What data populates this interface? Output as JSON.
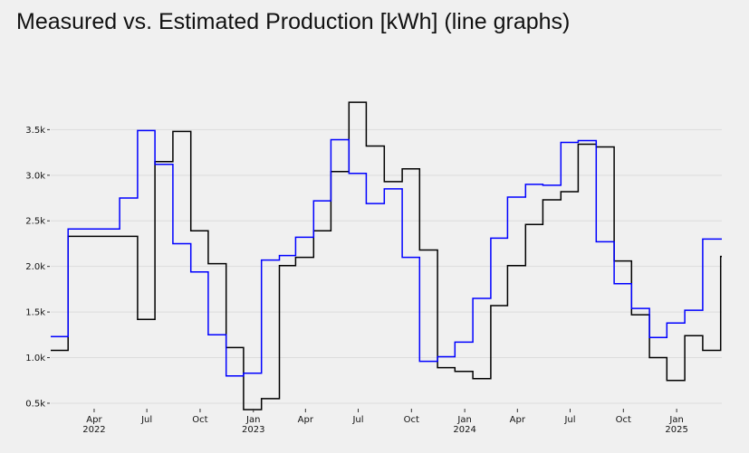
{
  "chart_data": {
    "type": "line",
    "title": "Measured vs. Estimated Production [kWh] (line graphs)",
    "xlabel": "",
    "ylabel": "",
    "step": true,
    "grid": true,
    "x_range": [
      "2022-01-16",
      "2025-03-20"
    ],
    "ylim": [
      450,
      3950
    ],
    "y_ticks": [
      500,
      1000,
      1500,
      2000,
      2500,
      3000,
      3500
    ],
    "y_tick_labels": [
      "0.5k",
      "1.0k",
      "1.5k",
      "2.0k",
      "2.5k",
      "3.0k",
      "3.5k"
    ],
    "x_ticks": [
      {
        "date": "2022-04-01",
        "label": "Apr",
        "sublabel": "2022"
      },
      {
        "date": "2022-07-01",
        "label": "Jul",
        "sublabel": ""
      },
      {
        "date": "2022-10-01",
        "label": "Oct",
        "sublabel": ""
      },
      {
        "date": "2023-01-01",
        "label": "Jan",
        "sublabel": "2023"
      },
      {
        "date": "2023-04-01",
        "label": "Apr",
        "sublabel": ""
      },
      {
        "date": "2023-07-01",
        "label": "Jul",
        "sublabel": ""
      },
      {
        "date": "2023-10-01",
        "label": "Oct",
        "sublabel": ""
      },
      {
        "date": "2024-01-01",
        "label": "Jan",
        "sublabel": "2024"
      },
      {
        "date": "2024-04-01",
        "label": "Apr",
        "sublabel": ""
      },
      {
        "date": "2024-07-01",
        "label": "Jul",
        "sublabel": ""
      },
      {
        "date": "2024-10-01",
        "label": "Oct",
        "sublabel": ""
      },
      {
        "date": "2025-01-01",
        "label": "Jan",
        "sublabel": "2025"
      }
    ],
    "series": [
      {
        "color": "#000000",
        "dates": [
          "2022-01-16",
          "2022-02-15",
          "2022-06-15",
          "2022-07-15",
          "2022-08-15",
          "2022-09-15",
          "2022-10-15",
          "2022-11-15",
          "2022-12-15",
          "2023-01-15",
          "2023-02-15",
          "2023-03-15",
          "2023-04-15",
          "2023-05-15",
          "2023-06-15",
          "2023-07-15",
          "2023-08-15",
          "2023-09-15",
          "2023-10-15",
          "2023-11-15",
          "2023-12-15",
          "2024-01-15",
          "2024-02-15",
          "2024-03-15",
          "2024-04-15",
          "2024-05-15",
          "2024-06-15",
          "2024-07-15",
          "2024-08-15",
          "2024-09-15",
          "2024-10-15",
          "2024-11-15",
          "2024-12-15",
          "2025-01-15",
          "2025-02-15",
          "2025-03-18",
          "2025-03-20"
        ],
        "values": [
          1080,
          2330,
          1420,
          3150,
          3480,
          2390,
          2030,
          1110,
          430,
          550,
          2010,
          2100,
          2390,
          3040,
          3800,
          3320,
          2930,
          3070,
          2180,
          890,
          850,
          770,
          1570,
          2010,
          2460,
          2730,
          2820,
          3340,
          3310,
          2060,
          1470,
          1000,
          750,
          1240,
          1080,
          2110,
          2110
        ]
      },
      {
        "color": "#0000ff",
        "dates": [
          "2022-01-16",
          "2022-02-15",
          "2022-05-15",
          "2022-06-15",
          "2022-07-15",
          "2022-08-15",
          "2022-09-15",
          "2022-10-15",
          "2022-11-15",
          "2022-12-15",
          "2023-01-15",
          "2023-02-15",
          "2023-03-15",
          "2023-04-15",
          "2023-05-15",
          "2023-06-15",
          "2023-07-15",
          "2023-08-15",
          "2023-09-15",
          "2023-10-15",
          "2023-11-15",
          "2023-12-15",
          "2024-01-15",
          "2024-02-15",
          "2024-03-15",
          "2024-04-15",
          "2024-05-15",
          "2024-06-15",
          "2024-07-15",
          "2024-08-15",
          "2024-09-15",
          "2024-10-15",
          "2024-11-15",
          "2024-12-15",
          "2025-01-15",
          "2025-02-15",
          "2025-03-18",
          "2025-03-20"
        ],
        "values": [
          1230,
          2410,
          2750,
          3490,
          3120,
          2250,
          1940,
          1250,
          800,
          830,
          2070,
          2120,
          2320,
          2720,
          3390,
          3020,
          2690,
          2850,
          2100,
          960,
          1010,
          1170,
          1650,
          2310,
          2760,
          2900,
          2890,
          3360,
          3380,
          2270,
          1810,
          1540,
          1220,
          1380,
          1520,
          2300,
          2300,
          2300
        ]
      }
    ]
  }
}
